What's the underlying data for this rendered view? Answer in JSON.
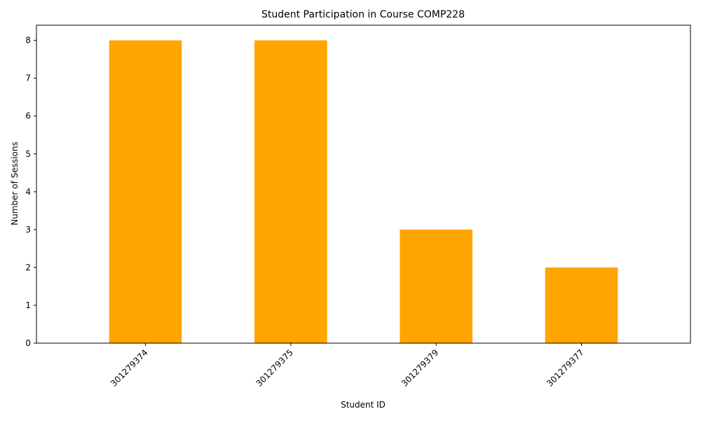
{
  "chart_data": {
    "type": "bar",
    "title": "Student Participation in Course COMP228",
    "xlabel": "Student ID",
    "ylabel": "Number of Sessions",
    "categories": [
      "301279374",
      "301279375",
      "301279379",
      "301279377"
    ],
    "values": [
      8,
      8,
      3,
      2
    ],
    "ylim": [
      0,
      8.4
    ],
    "yticks": [
      0,
      1,
      2,
      3,
      4,
      5,
      6,
      7,
      8
    ],
    "bar_color": "#FFA500",
    "grid": false,
    "legend": "none",
    "xtick_rotation": 45
  }
}
